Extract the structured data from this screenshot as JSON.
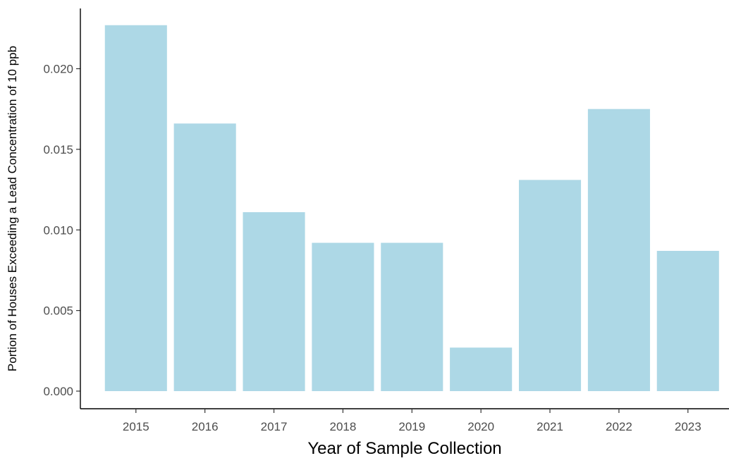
{
  "chart_data": {
    "type": "bar",
    "title": "",
    "xlabel": "Year of Sample Collection",
    "ylabel": "Portion of Houses Exceeding a Lead Concentration of 10 ppb",
    "categories": [
      "2015",
      "2016",
      "2017",
      "2018",
      "2019",
      "2020",
      "2021",
      "2022",
      "2023"
    ],
    "values": [
      0.0227,
      0.0166,
      0.0111,
      0.0092,
      0.0092,
      0.0027,
      0.0131,
      0.0175,
      0.0087
    ],
    "ylim": [
      0,
      0.0237
    ],
    "yticks": [
      "0.000",
      "0.005",
      "0.010",
      "0.015",
      "0.020"
    ],
    "grid": false,
    "bar_color": "#add8e6"
  }
}
